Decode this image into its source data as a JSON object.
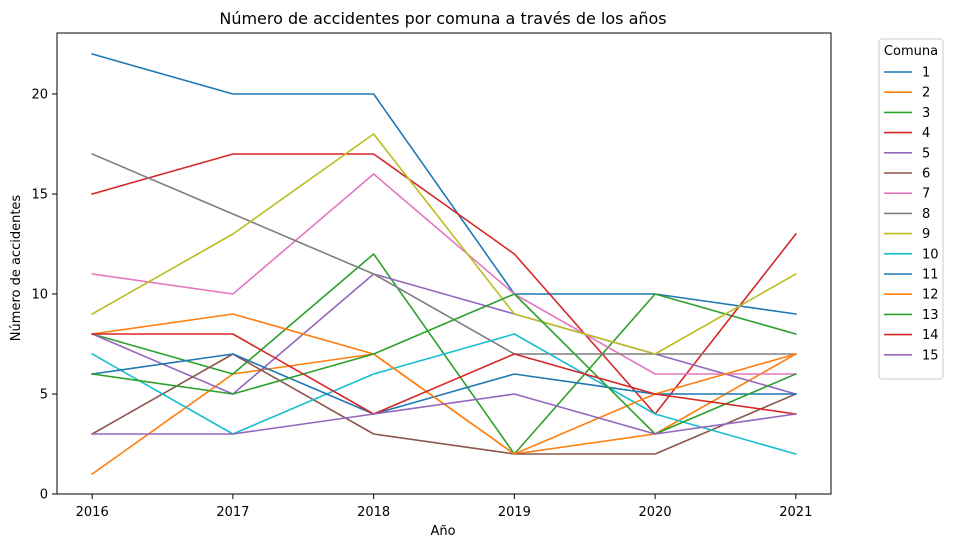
{
  "chart_data": {
    "type": "line",
    "title": "Número de accidentes por comuna a través de los años",
    "xlabel": "Año",
    "ylabel": "Número de accidentes",
    "x": [
      2016,
      2017,
      2018,
      2019,
      2020,
      2021
    ],
    "xlim": [
      2015.75,
      2021.25
    ],
    "ylim": [
      0,
      23.05
    ],
    "yticks": [
      0,
      5,
      10,
      15,
      20
    ],
    "grid": false,
    "legend": {
      "title": "Comuna",
      "placement": "outside-top-right"
    },
    "series": [
      {
        "name": "1",
        "color": "#1f77b4",
        "values": [
          22,
          20,
          20,
          10,
          10,
          9
        ]
      },
      {
        "name": "2",
        "color": "#ff7f0e",
        "values": [
          1,
          6,
          7,
          2,
          3,
          7
        ]
      },
      {
        "name": "3",
        "color": "#2ca02c",
        "values": [
          8,
          6,
          12,
          2,
          10,
          8
        ]
      },
      {
        "name": "4",
        "color": "#d62728",
        "values": [
          15,
          17,
          17,
          12,
          4,
          13
        ]
      },
      {
        "name": "5",
        "color": "#9467bd",
        "values": [
          8,
          5,
          11,
          9,
          7,
          5
        ]
      },
      {
        "name": "6",
        "color": "#8c564b",
        "values": [
          3,
          7,
          3,
          2,
          2,
          5
        ]
      },
      {
        "name": "7",
        "color": "#e377c2",
        "values": [
          11,
          10,
          16,
          10,
          6,
          6
        ]
      },
      {
        "name": "8",
        "color": "#7f7f7f",
        "values": [
          17,
          14,
          11,
          7,
          7,
          7
        ]
      },
      {
        "name": "9",
        "color": "#bcbd22",
        "values": [
          9,
          13,
          18,
          9,
          7,
          11
        ]
      },
      {
        "name": "10",
        "color": "#17becf",
        "values": [
          7,
          3,
          6,
          8,
          4,
          2
        ]
      },
      {
        "name": "11",
        "color": "#1f77b4",
        "values": [
          6,
          7,
          4,
          6,
          5,
          5
        ]
      },
      {
        "name": "12",
        "color": "#ff7f0e",
        "values": [
          8,
          9,
          7,
          2,
          5,
          7
        ]
      },
      {
        "name": "13",
        "color": "#2ca02c",
        "values": [
          6,
          5,
          7,
          10,
          3,
          6
        ]
      },
      {
        "name": "14",
        "color": "#d62728",
        "values": [
          8,
          8,
          4,
          7,
          5,
          4
        ]
      },
      {
        "name": "15",
        "color": "#9467bd",
        "values": [
          3,
          3,
          4,
          5,
          3,
          4
        ]
      }
    ]
  }
}
